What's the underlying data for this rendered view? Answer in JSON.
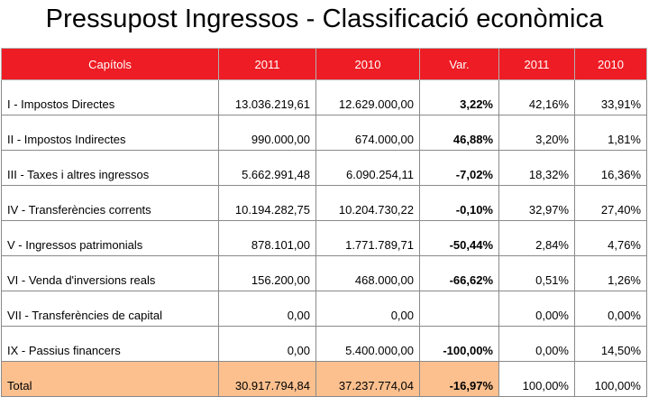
{
  "title": "Pressupost Ingressos - Classificació econòmica",
  "colors": {
    "header_bg": "#ee1c24",
    "header_text": "#ffffff",
    "total_highlight": "#fcc08f",
    "border": "#8a8a8a"
  },
  "table": {
    "headers": [
      "Capítols",
      "2011",
      "2010",
      "Var.",
      "2011",
      "2010"
    ],
    "rows": [
      {
        "label": "I - Impostos Directes",
        "v2011": "13.036.219,61",
        "v2010": "12.629.000,00",
        "var": "3,22%",
        "p2011": "42,16%",
        "p2010": "33,91%"
      },
      {
        "label": "II - Impostos Indirectes",
        "v2011": "990.000,00",
        "v2010": "674.000,00",
        "var": "46,88%",
        "p2011": "3,20%",
        "p2010": "1,81%"
      },
      {
        "label": "III - Taxes i altres ingressos",
        "v2011": "5.662.991,48",
        "v2010": "6.090.254,11",
        "var": "-7,02%",
        "p2011": "18,32%",
        "p2010": "16,36%"
      },
      {
        "label": "IV - Transferències corrents",
        "v2011": "10.194.282,75",
        "v2010": "10.204.730,22",
        "var": "-0,10%",
        "p2011": "32,97%",
        "p2010": "27,40%"
      },
      {
        "label": "V - Ingressos patrimonials",
        "v2011": "878.101,00",
        "v2010": "1.771.789,71",
        "var": "-50,44%",
        "p2011": "2,84%",
        "p2010": "4,76%"
      },
      {
        "label": "VI - Venda d'inversions reals",
        "v2011": "156.200,00",
        "v2010": "468.000,00",
        "var": "-66,62%",
        "p2011": "0,51%",
        "p2010": "1,26%"
      },
      {
        "label": "VII - Transferències de capital",
        "v2011": "0,00",
        "v2010": "0,00",
        "var": "",
        "p2011": "0,00%",
        "p2010": "0,00%"
      },
      {
        "label": "IX - Passius financers",
        "v2011": "0,00",
        "v2010": "5.400.000,00",
        "var": "-100,00%",
        "p2011": "0,00%",
        "p2010": "14,50%"
      }
    ],
    "total": {
      "label": "Total",
      "v2011": "30.917.794,84",
      "v2010": "37.237.774,04",
      "var": "-16,97%",
      "p2011": "100,00%",
      "p2010": "100,00%"
    }
  }
}
